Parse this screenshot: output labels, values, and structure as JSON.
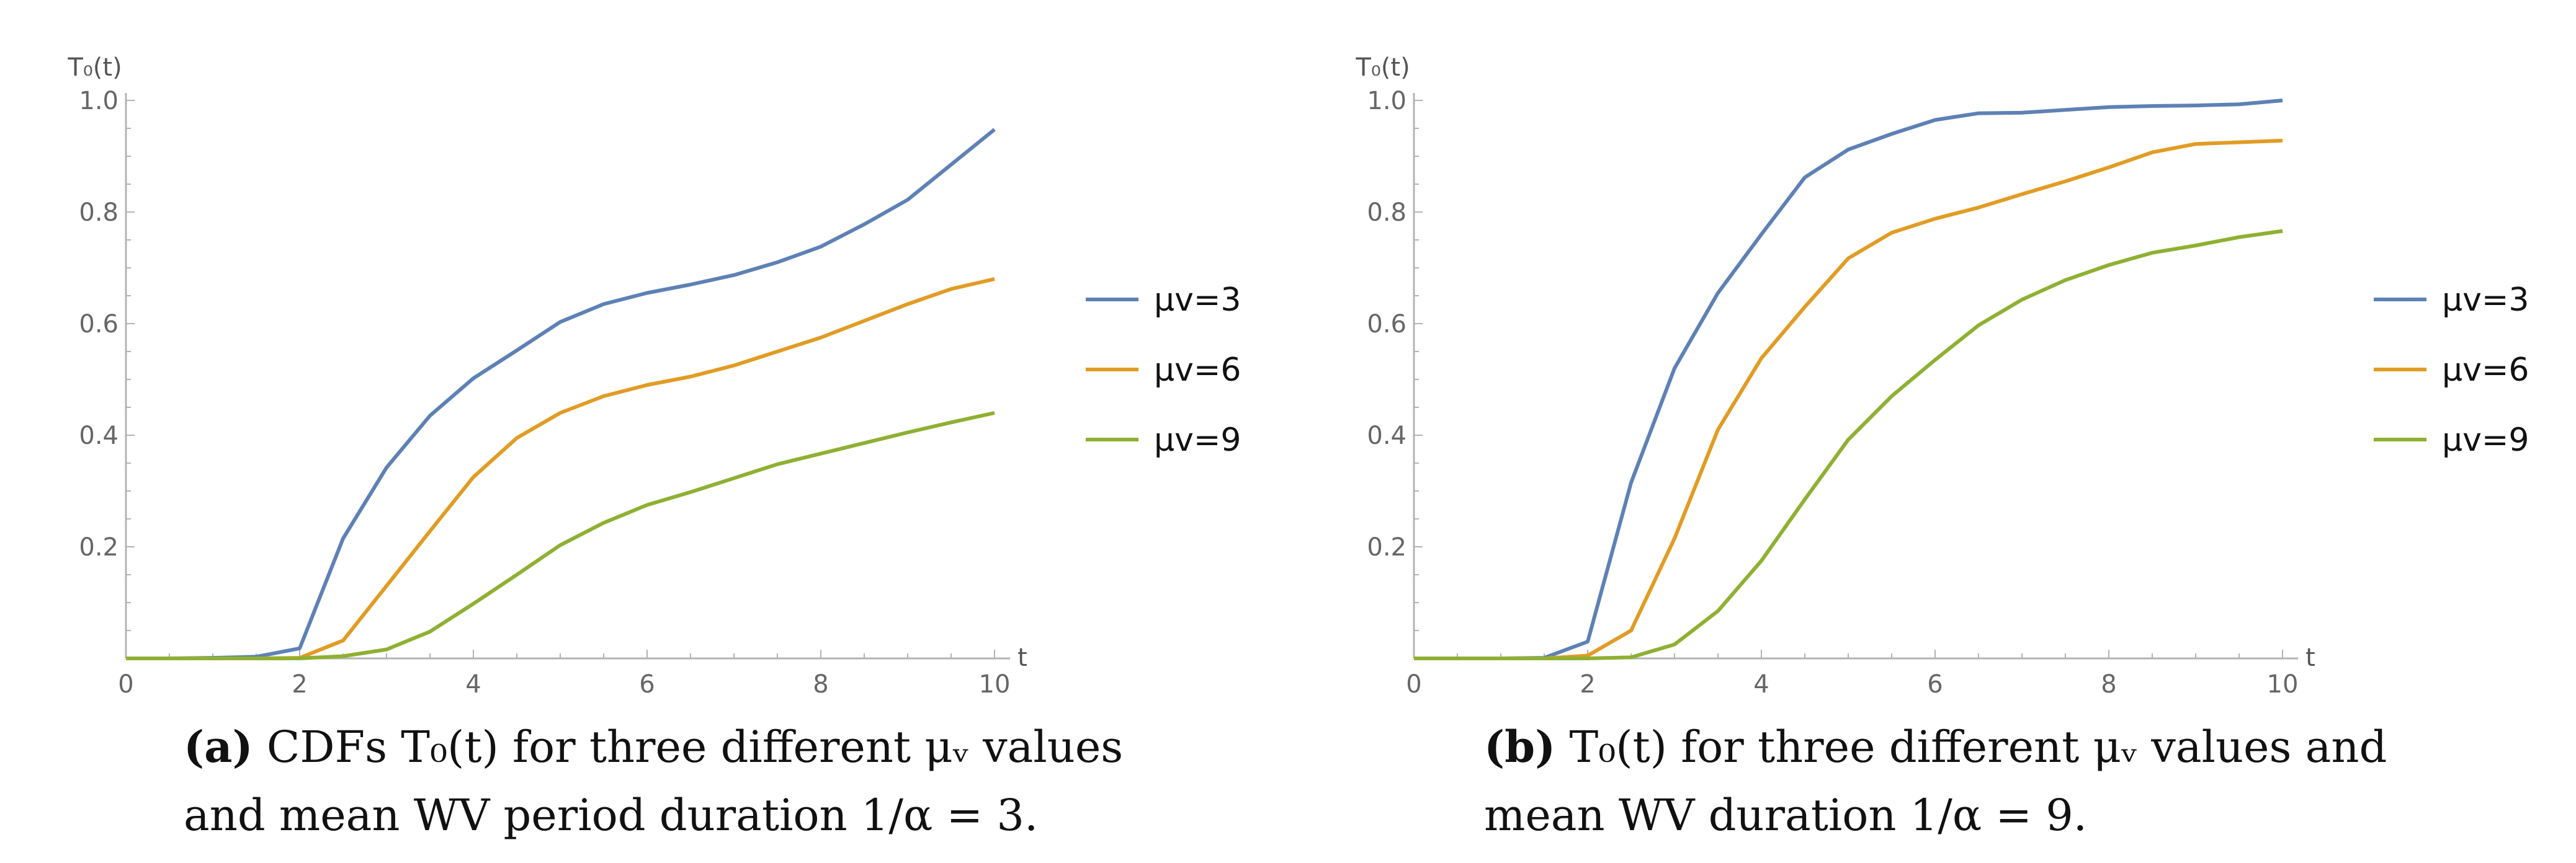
{
  "chart_data": [
    {
      "type": "line",
      "panel": "a",
      "ylabel": "T₀(t)",
      "xlabel": "t",
      "xlim": [
        0,
        10
      ],
      "ylim": [
        0,
        1.0
      ],
      "xticks": [
        0,
        2,
        4,
        6,
        8,
        10
      ],
      "yticks": [
        0.2,
        0.4,
        0.6,
        0.8,
        1.0
      ],
      "x": [
        0,
        0.5,
        1,
        1.5,
        2,
        2.5,
        3,
        3.5,
        4,
        4.5,
        5,
        5.5,
        6,
        6.5,
        7,
        7.5,
        8,
        8.5,
        9,
        9.5,
        10
      ],
      "series": [
        {
          "name": "μv=3",
          "color": "#5e81b5",
          "values": [
            0,
            0,
            0.001,
            0.003,
            0.018,
            0.215,
            0.342,
            0.435,
            0.502,
            0.552,
            0.603,
            0.635,
            0.655,
            0.67,
            0.687,
            0.71,
            0.738,
            0.778,
            0.822,
            0.885,
            0.948
          ]
        },
        {
          "name": "μv=6",
          "color": "#e19c24",
          "values": [
            0,
            0,
            0,
            0,
            0.001,
            0.032,
            0.13,
            0.228,
            0.325,
            0.395,
            0.44,
            0.47,
            0.49,
            0.505,
            0.525,
            0.55,
            0.575,
            0.605,
            0.635,
            0.662,
            0.68
          ]
        },
        {
          "name": "μv=9",
          "color": "#8fb032",
          "values": [
            0,
            0,
            0,
            0,
            0,
            0.004,
            0.016,
            0.048,
            0.098,
            0.15,
            0.203,
            0.243,
            0.275,
            0.298,
            0.323,
            0.348,
            0.367,
            0.386,
            0.405,
            0.423,
            0.44
          ]
        }
      ]
    },
    {
      "type": "line",
      "panel": "b",
      "ylabel": "T₀(t)",
      "xlabel": "t",
      "xlim": [
        0,
        10
      ],
      "ylim": [
        0,
        1.0
      ],
      "xticks": [
        0,
        2,
        4,
        6,
        8,
        10
      ],
      "yticks": [
        0.2,
        0.4,
        0.6,
        0.8,
        1.0
      ],
      "x": [
        0,
        0.5,
        1,
        1.5,
        2,
        2.5,
        3,
        3.5,
        4,
        4.5,
        5,
        5.5,
        6,
        6.5,
        7,
        7.5,
        8,
        8.5,
        9,
        9.5,
        10
      ],
      "series": [
        {
          "name": "μv=3",
          "color": "#5e81b5",
          "values": [
            0,
            0,
            0,
            0.001,
            0.03,
            0.315,
            0.52,
            0.655,
            0.76,
            0.862,
            0.912,
            0.94,
            0.965,
            0.977,
            0.978,
            0.983,
            0.988,
            0.99,
            0.991,
            0.993,
            1.0
          ]
        },
        {
          "name": "μv=6",
          "color": "#e19c24",
          "values": [
            0,
            0,
            0,
            0,
            0.005,
            0.05,
            0.215,
            0.41,
            0.538,
            0.63,
            0.717,
            0.763,
            0.788,
            0.808,
            0.832,
            0.855,
            0.88,
            0.907,
            0.922,
            0.925,
            0.928
          ]
        },
        {
          "name": "μv=9",
          "color": "#8fb032",
          "values": [
            0,
            0,
            0,
            0,
            0,
            0.002,
            0.025,
            0.085,
            0.175,
            0.285,
            0.392,
            0.47,
            0.535,
            0.597,
            0.643,
            0.678,
            0.705,
            0.727,
            0.74,
            0.755,
            0.766
          ]
        }
      ]
    }
  ],
  "captions": {
    "a": {
      "tag": "(a)",
      "text": "CDFs T₀(t) for three different μᵥ values and mean WV period duration 1/α = 3."
    },
    "b": {
      "tag": "(b)",
      "text": "T₀(t) for three different μᵥ values and mean WV duration 1/α = 9."
    }
  }
}
